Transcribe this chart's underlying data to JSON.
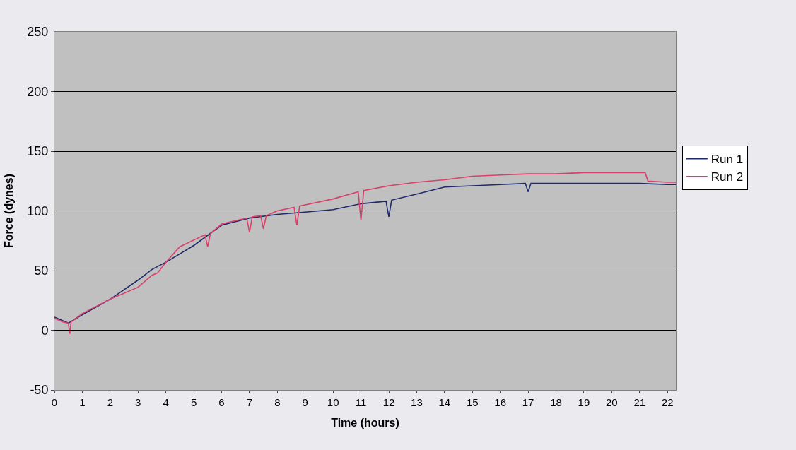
{
  "chart_data": {
    "type": "line",
    "xlabel": "Time (hours)",
    "ylabel": "Force (dynes)",
    "xlim": [
      0,
      22.3
    ],
    "xticks": [
      0,
      1,
      2,
      3,
      4,
      5,
      6,
      7,
      8,
      9,
      10,
      11,
      12,
      13,
      14,
      15,
      16,
      17,
      18,
      19,
      20,
      21,
      22
    ],
    "ylim": [
      -50,
      250
    ],
    "yticks": [
      -50,
      0,
      50,
      100,
      150,
      200,
      250
    ],
    "grid": "y",
    "legend": "right",
    "marker": "none",
    "line_style": "solid",
    "series": [
      {
        "name": "Run 1",
        "color": "#1f2a6b",
        "x": [
          0,
          0.5,
          1,
          2,
          3,
          3.5,
          4,
          4.5,
          5,
          6,
          7,
          8,
          9,
          10,
          11,
          11.9,
          12,
          12.1,
          13,
          14,
          15,
          16,
          16.9,
          17,
          17.1,
          18,
          19,
          20,
          21,
          22,
          22.3
        ],
        "values": [
          11,
          6,
          13,
          26,
          42,
          51,
          57,
          64,
          71,
          88,
          94,
          97,
          99,
          101,
          106,
          108,
          95,
          109,
          114,
          120,
          121,
          122,
          123,
          116,
          123,
          123,
          123,
          123,
          123,
          122,
          122
        ]
      },
      {
        "name": "Run 2",
        "color": "#d8406a",
        "x": [
          0,
          0.3,
          0.5,
          0.55,
          0.6,
          1,
          2,
          3,
          3.5,
          3.7,
          4,
          4.5,
          5.4,
          5.5,
          5.6,
          6,
          6.9,
          7,
          7.1,
          7.4,
          7.5,
          7.6,
          8,
          8.6,
          8.7,
          8.8,
          9,
          10,
          10.9,
          11,
          11.1,
          12,
          13,
          14,
          15,
          16,
          17,
          18,
          19,
          20,
          21.2,
          21.3,
          22,
          22.3
        ],
        "values": [
          10,
          7,
          6,
          -3,
          7,
          14,
          26,
          36,
          46,
          48,
          57,
          70,
          80,
          70,
          81,
          89,
          94,
          82,
          95,
          96,
          85,
          96,
          100,
          103,
          88,
          104,
          105,
          110,
          116,
          92,
          117,
          121,
          124,
          126,
          129,
          130,
          131,
          131,
          132,
          132,
          132,
          125,
          124,
          124
        ]
      }
    ]
  }
}
